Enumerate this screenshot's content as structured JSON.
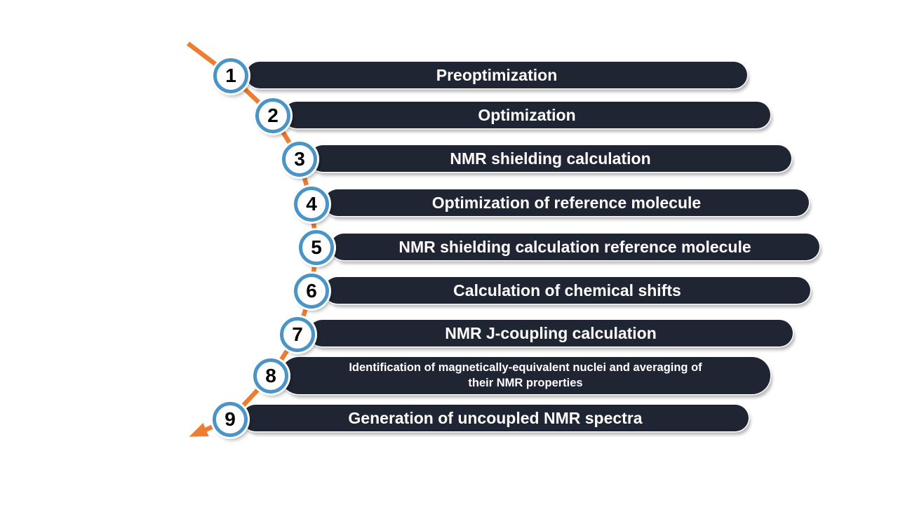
{
  "diagram": {
    "type": "process-flow",
    "steps": [
      {
        "number": "1",
        "label": "Preoptimization"
      },
      {
        "number": "2",
        "label": "Optimization"
      },
      {
        "number": "3",
        "label": "NMR shielding calculation"
      },
      {
        "number": "4",
        "label": "Optimization of reference molecule"
      },
      {
        "number": "5",
        "label": "NMR shielding calculation reference molecule"
      },
      {
        "number": "6",
        "label": "Calculation of chemical shifts"
      },
      {
        "number": "7",
        "label": "NMR J-coupling calculation"
      },
      {
        "number": "8",
        "label": "Identification of magnetically-equivalent nuclei and averaging of their NMR properties"
      },
      {
        "number": "9",
        "label": "Generation of uncoupled NMR spectra"
      }
    ],
    "colors": {
      "background": "#ffffff",
      "bar_fill": "#1f2532",
      "bar_text": "#ffffff",
      "circle_fill": "#ffffff",
      "circle_ring": "#4b94c7",
      "circle_number": "#000000",
      "arrow": "#ed7d31"
    }
  }
}
